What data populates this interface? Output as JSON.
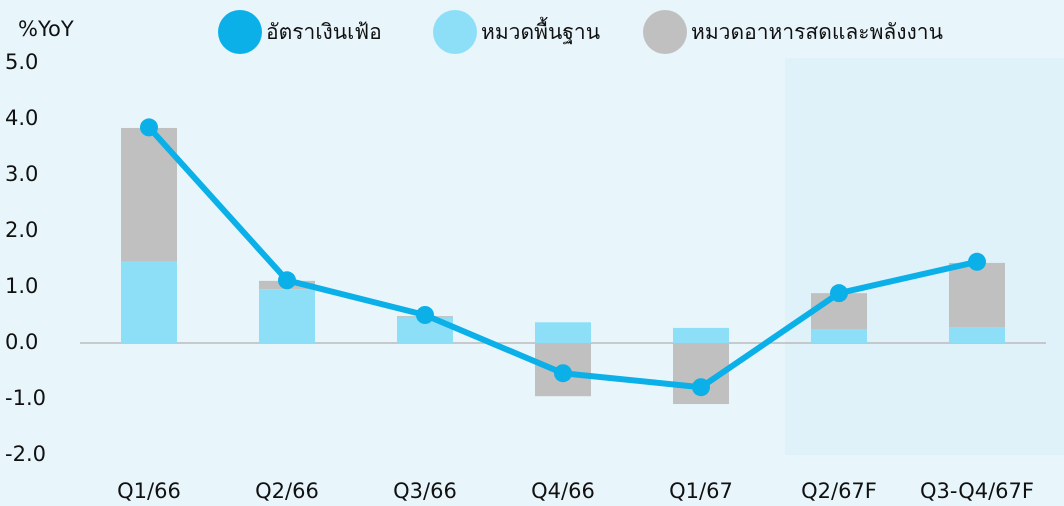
{
  "chart_data": {
    "type": "bar",
    "y_label": "%YoY",
    "categories": [
      "Q1/66",
      "Q2/66",
      "Q3/66",
      "Q4/66",
      "Q1/67",
      "Q2/67F",
      "Q3-Q4/67F"
    ],
    "series": [
      {
        "name": "อัตราเงินเฟ้อ",
        "color": "#0bb0e8",
        "type": "line",
        "values": [
          3.85,
          1.12,
          0.5,
          -0.54,
          -0.79,
          0.89,
          1.45
        ]
      },
      {
        "name": "หมวดพื้นฐาน",
        "color": "#8ddff7",
        "type": "bar",
        "values": [
          1.45,
          0.96,
          0.45,
          0.37,
          0.27,
          0.25,
          0.28
        ]
      },
      {
        "name": "หมวดอาหารสดและพลังงาน",
        "color": "#c0c0c0",
        "type": "bar",
        "values": [
          2.39,
          0.15,
          0.03,
          -0.95,
          -1.09,
          0.64,
          1.15
        ]
      }
    ],
    "stacked": true,
    "ylim": [
      -2,
      5
    ],
    "yticks": [
      {
        "value": 5,
        "label": "5.0"
      },
      {
        "value": 4,
        "label": "4.0"
      },
      {
        "value": 3,
        "label": "3.0"
      },
      {
        "value": 2,
        "label": "2.0"
      },
      {
        "value": 1,
        "label": "1.0"
      },
      {
        "value": 0,
        "label": "0.0"
      },
      {
        "value": -1,
        "label": "-1.0"
      },
      {
        "value": -2,
        "label": "-2.0"
      }
    ]
  }
}
